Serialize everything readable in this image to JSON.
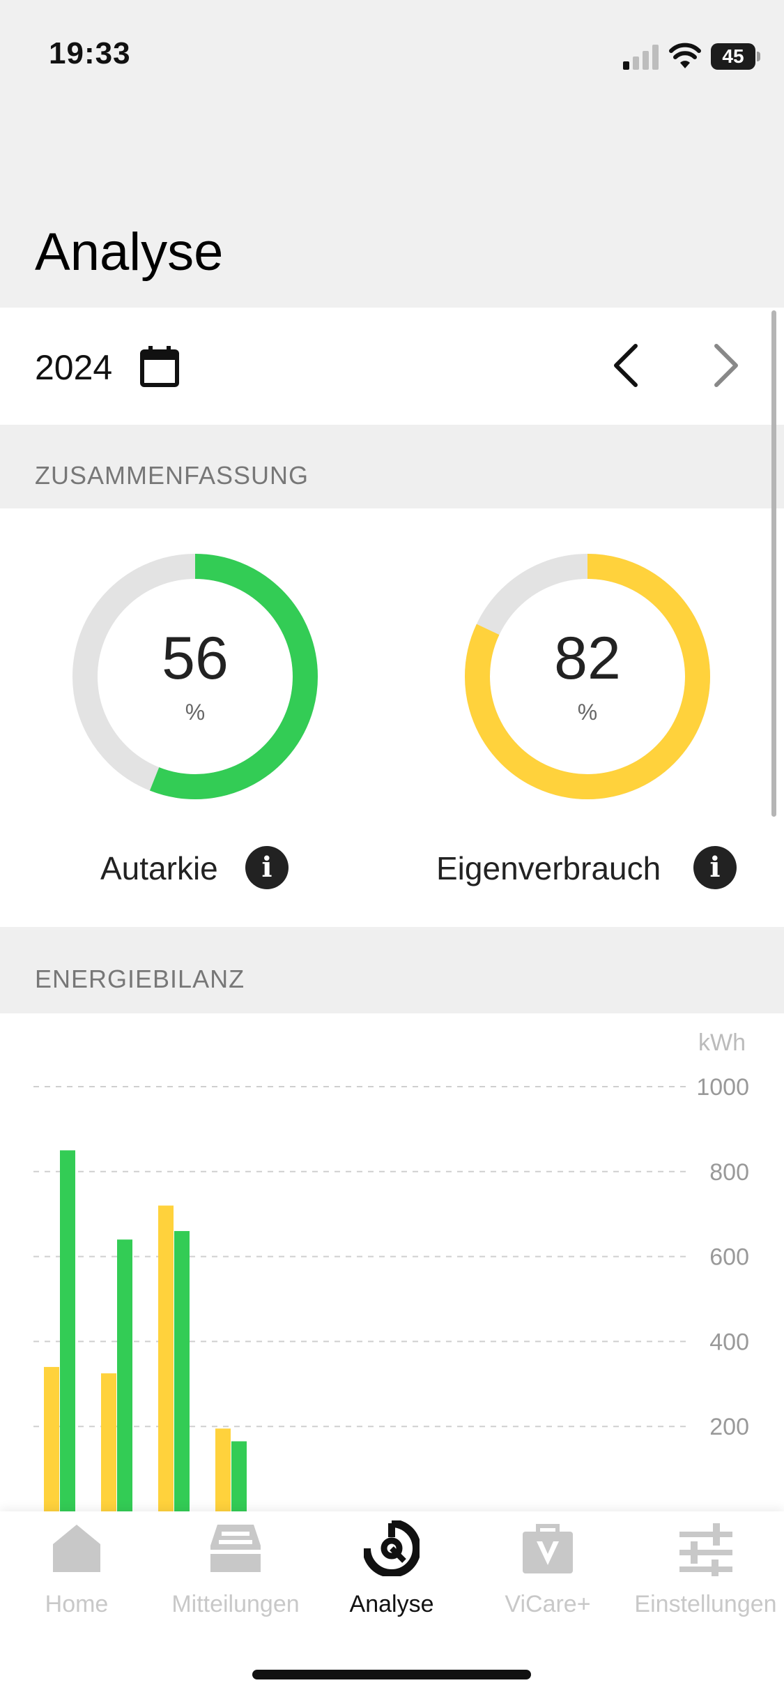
{
  "status_bar": {
    "time": "19:33",
    "battery_level": "45"
  },
  "header": {
    "title": "Analyse"
  },
  "period": {
    "year": "2024"
  },
  "summary": {
    "label": "ZUSAMMENFASSUNG",
    "autarkie": {
      "value": "56",
      "unit": "%",
      "label": "Autarkie",
      "percent": 56,
      "color": "#33cc55"
    },
    "eigenverbrauch": {
      "value": "82",
      "unit": "%",
      "label": "Eigenverbrauch",
      "percent": 82,
      "color": "#ffd23c"
    },
    "track_color": "#e3e3e3"
  },
  "energy": {
    "label": "ENERGIEBILANZ"
  },
  "chart_data": {
    "type": "bar",
    "unit": "kWh",
    "y_ticks": [
      "200",
      "400",
      "600",
      "800",
      "1000"
    ],
    "ylim": [
      0,
      1000
    ],
    "grid": true,
    "series": [
      {
        "color": "#ffd23c",
        "values": [
          340,
          325,
          720,
          195
        ]
      },
      {
        "color": "#33cc55",
        "values": [
          850,
          640,
          660,
          165
        ]
      }
    ]
  },
  "tabbar": {
    "tabs": [
      {
        "label": "Home",
        "icon": "home-icon"
      },
      {
        "label": "Mitteilungen",
        "icon": "inbox-icon"
      },
      {
        "label": "Analyse",
        "icon": "analysis-icon",
        "active": true
      },
      {
        "label": "ViCare+",
        "icon": "vicare-bag-icon"
      },
      {
        "label": "Einstellungen",
        "icon": "sliders-icon"
      }
    ],
    "active_color": "#111111",
    "inactive_color": "#c8c8c8"
  }
}
